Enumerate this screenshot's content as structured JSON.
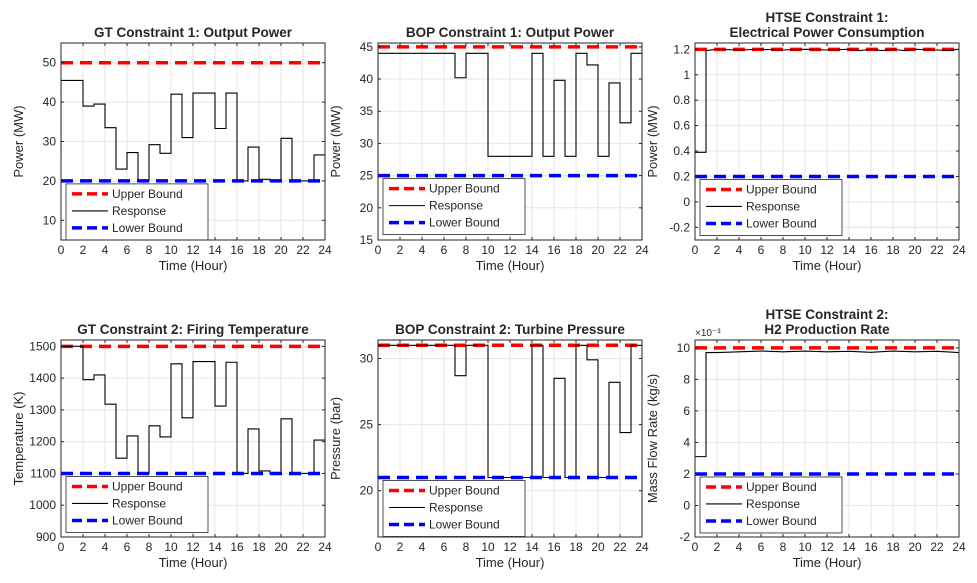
{
  "chart_data": [
    {
      "type": "line",
      "title": [
        "GT Constraint 1: Output Power"
      ],
      "xlabel": "Time (Hour)",
      "ylabel": "Power (MW)",
      "xlim": [
        0,
        24
      ],
      "ylim": [
        5,
        55
      ],
      "xticks": [
        0,
        2,
        4,
        6,
        8,
        10,
        12,
        14,
        16,
        18,
        20,
        22,
        24
      ],
      "yticks": [
        10,
        20,
        30,
        40,
        50
      ],
      "ytick_labels": [
        "10",
        "20",
        "30",
        "40",
        "50"
      ],
      "exponent_label": "",
      "grid": true,
      "legend_location": "bottom-left",
      "series": [
        {
          "name": "Upper Bound",
          "color": "#ff0000",
          "style": "dashed",
          "x": [
            0,
            24
          ],
          "y": [
            50,
            50
          ]
        },
        {
          "name": "Response",
          "color": "#000000",
          "style": "solid",
          "x": [
            0,
            0,
            2,
            2,
            3,
            3,
            4,
            4,
            5,
            5,
            6,
            6,
            7,
            7,
            8,
            8,
            9,
            9,
            10,
            10,
            11,
            11,
            12,
            12,
            14,
            14,
            15,
            15,
            16,
            16,
            17,
            17,
            18,
            18,
            19,
            19,
            20,
            20,
            21,
            21,
            23,
            23,
            24
          ],
          "y": [
            26.5,
            45.5,
            45.5,
            39,
            39,
            39.5,
            39.5,
            33.5,
            33.5,
            23,
            23,
            27.2,
            27.2,
            20,
            20,
            29.2,
            29.2,
            27,
            27,
            42,
            42,
            31,
            31,
            42.3,
            42.3,
            33.3,
            33.3,
            42.3,
            42.3,
            20,
            20,
            28.6,
            28.6,
            20.4,
            20.4,
            20,
            20,
            30.8,
            30.8,
            20,
            20,
            26.6,
            26.6
          ]
        },
        {
          "name": "Lower Bound",
          "color": "#0000ff",
          "style": "dashed",
          "x": [
            0,
            24
          ],
          "y": [
            20,
            20
          ]
        }
      ]
    },
    {
      "type": "line",
      "title": [
        "BOP Constraint 1: Output Power"
      ],
      "xlabel": "Time (Hour)",
      "ylabel": "Power (MW)",
      "xlim": [
        0,
        24
      ],
      "ylim": [
        15,
        45.6
      ],
      "xticks": [
        0,
        2,
        4,
        6,
        8,
        10,
        12,
        14,
        16,
        18,
        20,
        22,
        24
      ],
      "yticks": [
        15,
        20,
        25,
        30,
        35,
        40,
        45
      ],
      "ytick_labels": [
        "15",
        "20",
        "25",
        "30",
        "35",
        "40",
        "45"
      ],
      "exponent_label": "",
      "grid": true,
      "legend_location": "bottom-left",
      "series": [
        {
          "name": "Upper Bound",
          "color": "#ff0000",
          "style": "dashed",
          "x": [
            0,
            24
          ],
          "y": [
            45,
            45
          ]
        },
        {
          "name": "Response",
          "color": "#000000",
          "style": "solid",
          "x": [
            0,
            0,
            7,
            7,
            8,
            8,
            10,
            10,
            14,
            14,
            15,
            15,
            16,
            16,
            17,
            17,
            18,
            18,
            19,
            19,
            20,
            20,
            21,
            21,
            22,
            22,
            23,
            23,
            24
          ],
          "y": [
            33,
            44,
            44,
            40.2,
            40.2,
            44,
            44,
            28,
            28,
            44,
            44,
            28,
            28,
            39.8,
            39.8,
            28,
            28,
            44,
            44,
            42.2,
            42.2,
            28,
            28,
            39.4,
            39.4,
            33.2,
            33.2,
            44,
            44
          ]
        },
        {
          "name": "Lower Bound",
          "color": "#0000ff",
          "style": "dashed",
          "x": [
            0,
            24
          ],
          "y": [
            25,
            25
          ]
        }
      ]
    },
    {
      "type": "line",
      "title": [
        "HTSE Constraint 1:",
        "Electrical Power Consumption"
      ],
      "xlabel": "Time (Hour)",
      "ylabel": "Power (MW)",
      "xlim": [
        0,
        24
      ],
      "ylim": [
        -0.3,
        1.25
      ],
      "xticks": [
        0,
        2,
        4,
        6,
        8,
        10,
        12,
        14,
        16,
        18,
        20,
        22,
        24
      ],
      "yticks": [
        -0.2,
        0,
        0.2,
        0.4,
        0.6,
        0.8,
        1,
        1.2
      ],
      "ytick_labels": [
        "-0.2",
        "0",
        "0.2",
        "0.4",
        "0.6",
        "0.8",
        "1",
        "1.2"
      ],
      "exponent_label": "",
      "grid": true,
      "legend_location": "bottom-left",
      "series": [
        {
          "name": "Upper Bound",
          "color": "#ff0000",
          "style": "dashed",
          "x": [
            0,
            24
          ],
          "y": [
            1.2,
            1.2
          ]
        },
        {
          "name": "Response",
          "color": "#000000",
          "style": "solid",
          "x": [
            0,
            0,
            1,
            1,
            2,
            4,
            6,
            8,
            10,
            12,
            14,
            15,
            16,
            17,
            18,
            19,
            20,
            22,
            23,
            24
          ],
          "y": [
            0.7,
            0.39,
            0.39,
            1.19,
            1.2,
            1.195,
            1.2,
            1.195,
            1.2,
            1.195,
            1.2,
            1.19,
            1.2,
            1.19,
            1.2,
            1.19,
            1.2,
            1.195,
            1.19,
            1.2
          ]
        },
        {
          "name": "Lower Bound",
          "color": "#0000ff",
          "style": "dashed",
          "x": [
            0,
            24
          ],
          "y": [
            0.2,
            0.2
          ]
        }
      ]
    },
    {
      "type": "line",
      "title": [
        "GT Constraint 2: Firing Temperature"
      ],
      "xlabel": "Time (Hour)",
      "ylabel": "Temperature (K)",
      "xlim": [
        0,
        24
      ],
      "ylim": [
        900,
        1520
      ],
      "xticks": [
        0,
        2,
        4,
        6,
        8,
        10,
        12,
        14,
        16,
        18,
        20,
        22,
        24
      ],
      "yticks": [
        900,
        1000,
        1100,
        1200,
        1300,
        1400,
        1500
      ],
      "ytick_labels": [
        "900",
        "1000",
        "1100",
        "1200",
        "1300",
        "1400",
        "1500"
      ],
      "exponent_label": "",
      "grid": true,
      "legend_location": "bottom-left",
      "series": [
        {
          "name": "Upper Bound",
          "color": "#ff0000",
          "style": "dashed",
          "x": [
            0,
            24
          ],
          "y": [
            1500,
            1500
          ]
        },
        {
          "name": "Response",
          "color": "#000000",
          "style": "solid",
          "x": [
            0,
            2,
            2,
            3,
            3,
            4,
            4,
            5,
            5,
            6,
            6,
            7,
            7,
            8,
            8,
            9,
            9,
            10,
            10,
            11,
            11,
            12,
            12,
            14,
            14,
            15,
            15,
            16,
            16,
            17,
            17,
            18,
            18,
            19,
            19,
            20,
            20,
            21,
            21,
            23,
            23,
            24
          ],
          "y": [
            1500,
            1500,
            1395,
            1395,
            1410,
            1410,
            1318,
            1318,
            1148,
            1148,
            1218,
            1218,
            1100,
            1100,
            1250,
            1250,
            1215,
            1215,
            1445,
            1445,
            1275,
            1275,
            1452,
            1452,
            1312,
            1312,
            1450,
            1450,
            1100,
            1100,
            1240,
            1240,
            1108,
            1108,
            1100,
            1100,
            1272,
            1272,
            1100,
            1100,
            1205,
            1205
          ]
        },
        {
          "name": "Lower Bound",
          "color": "#0000ff",
          "style": "dashed",
          "x": [
            0,
            24
          ],
          "y": [
            1100,
            1100
          ]
        }
      ]
    },
    {
      "type": "line",
      "title": [
        "BOP Constraint 2: Turbine Pressure"
      ],
      "xlabel": "Time (Hour)",
      "ylabel": "Pressure (bar)",
      "xlim": [
        0,
        24
      ],
      "ylim": [
        16.5,
        31.4
      ],
      "xticks": [
        0,
        2,
        4,
        6,
        8,
        10,
        12,
        14,
        16,
        18,
        20,
        22,
        24
      ],
      "yticks": [
        20,
        25,
        30
      ],
      "ytick_labels": [
        "20",
        "25",
        "30"
      ],
      "exponent_label": "",
      "grid": true,
      "legend_location": "bottom-left",
      "series": [
        {
          "name": "Upper Bound",
          "color": "#ff0000",
          "style": "dashed",
          "x": [
            0,
            24
          ],
          "y": [
            31,
            31
          ]
        },
        {
          "name": "Response",
          "color": "#000000",
          "style": "solid",
          "x": [
            0,
            7,
            7,
            8,
            8,
            10,
            10,
            14,
            14,
            15,
            15,
            16,
            16,
            17,
            17,
            18,
            18,
            19,
            19,
            20,
            20,
            21,
            21,
            22,
            22,
            23,
            23,
            24
          ],
          "y": [
            31,
            31,
            28.7,
            28.7,
            31,
            31,
            21,
            21,
            31,
            31,
            21,
            21,
            28.5,
            28.5,
            21,
            21,
            31,
            31,
            29.9,
            29.9,
            21,
            21,
            28.2,
            28.2,
            24.4,
            24.4,
            31,
            31
          ]
        },
        {
          "name": "Lower Bound",
          "color": "#0000ff",
          "style": "dashed",
          "x": [
            0,
            24
          ],
          "y": [
            21,
            21
          ]
        }
      ]
    },
    {
      "type": "line",
      "title": [
        "HTSE Constraint 2:",
        "H2 Production Rate"
      ],
      "xlabel": "Time (Hour)",
      "ylabel": "Mass Flow Rate (kg/s)",
      "xlim": [
        0,
        24
      ],
      "ylim": [
        -0.002,
        0.0105
      ],
      "xticks": [
        0,
        2,
        4,
        6,
        8,
        10,
        12,
        14,
        16,
        18,
        20,
        22,
        24
      ],
      "yticks": [
        -0.002,
        0,
        0.002,
        0.004,
        0.006,
        0.008,
        0.01
      ],
      "ytick_labels": [
        "-2",
        "0",
        "2",
        "4",
        "6",
        "8",
        "10"
      ],
      "exponent_label": "×10⁻³",
      "grid": true,
      "legend_location": "bottom-left",
      "series": [
        {
          "name": "Upper Bound",
          "color": "#ff0000",
          "style": "dashed",
          "x": [
            0,
            24
          ],
          "y": [
            0.01,
            0.01
          ]
        },
        {
          "name": "Response",
          "color": "#000000",
          "style": "solid",
          "x": [
            0,
            0,
            1,
            1,
            2,
            4,
            6,
            8,
            10,
            12,
            14,
            16,
            18,
            20,
            22,
            24
          ],
          "y": [
            0.0058,
            0.0031,
            0.0031,
            0.0097,
            0.0097,
            0.00975,
            0.0098,
            0.00975,
            0.0098,
            0.00975,
            0.00978,
            0.00972,
            0.0098,
            0.00975,
            0.00978,
            0.0097
          ]
        },
        {
          "name": "Lower Bound",
          "color": "#0000ff",
          "style": "dashed",
          "x": [
            0,
            24
          ],
          "y": [
            0.002,
            0.002
          ]
        }
      ]
    }
  ]
}
